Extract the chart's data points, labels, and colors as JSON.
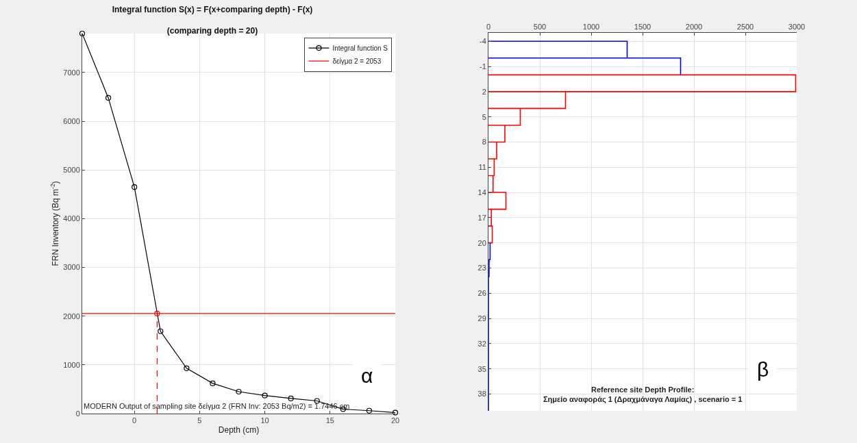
{
  "chart_data": [
    {
      "type": "line",
      "title": "Integral function S(x) = F(x+comparing depth) - F(x)",
      "subtitle": "(comparing depth = 20)",
      "xlabel": "Depth (cm)",
      "ylabel": "FRN Inventory (Bq m$^{-2}$)",
      "xlim": [
        -4,
        20
      ],
      "xticks": [
        0,
        5,
        10,
        15,
        20
      ],
      "ylim": [
        0,
        7800
      ],
      "yticks": [
        0,
        1000,
        2000,
        3000,
        4000,
        5000,
        6000,
        7000
      ],
      "grid": true,
      "legend": "top right",
      "series": [
        {
          "name": "Integral function S",
          "color": "#000000",
          "marker": "circle",
          "x": [
            -4,
            -2,
            0,
            2,
            4,
            6,
            8,
            10,
            12,
            14,
            16,
            18,
            20
          ],
          "values": [
            7800,
            6480,
            4650,
            1690,
            930,
            620,
            450,
            370,
            310,
            260,
            90,
            60,
            20
          ]
        },
        {
          "type": "scatter",
          "color": "#ff0000",
          "marker": "circle",
          "x": [
            1.7446
          ],
          "values": [
            2053
          ]
        },
        {
          "color": "#ff0000",
          "marker": "none",
          "line_style": "dashed",
          "x": [
            1.7446,
            1.7446
          ],
          "values": [
            0,
            2053
          ]
        }
      ],
      "ref_lines": [
        {
          "axis": "y",
          "value": 2053,
          "label": "δείγμα 2 = 2053",
          "color": "#ff0000"
        }
      ],
      "annotations": [
        "MODERN Output of sampling site δείγμα 2 (FRN Inv: 2053 Bq/m2) = 1.7446 cm",
        "α"
      ]
    },
    {
      "type": "line",
      "xlim": [
        0,
        3000
      ],
      "xticks": [
        0,
        500,
        1000,
        1500,
        2000,
        2500,
        3000
      ],
      "ylim": [
        40,
        -5
      ],
      "yticks": [
        -4,
        -1,
        2,
        5,
        8,
        11,
        14,
        17,
        20,
        23,
        26,
        29,
        32,
        35,
        38
      ],
      "grid": true,
      "series": [
        {
          "color": "#0000ff",
          "x": [
            0,
            1350,
            1350,
            0,
            1870,
            1870
          ],
          "values": [
            -4,
            -4,
            -2,
            -2,
            -2,
            0
          ]
        },
        {
          "color": "#ff0000",
          "x": [
            0,
            2990,
            2990,
            0,
            750,
            750,
            0,
            310,
            310,
            0,
            160,
            160,
            0,
            80,
            80,
            0,
            56,
            56,
            0,
            45,
            45,
            0,
            170,
            170,
            0,
            28,
            28,
            0,
            37,
            37,
            0
          ],
          "values": [
            0,
            0,
            2,
            2,
            2,
            4,
            4,
            4,
            6,
            6,
            6,
            8,
            8,
            8,
            10,
            10,
            10,
            12,
            12,
            12,
            14,
            14,
            14,
            16,
            16,
            16,
            18,
            18,
            18,
            20,
            20
          ]
        },
        {
          "color": "#0000ff",
          "x": [
            16,
            16,
            6,
            6,
            0,
            0
          ],
          "values": [
            20,
            22,
            22,
            24,
            24,
            40
          ]
        }
      ],
      "annotations": [
        "Reference site Depth Profile:\nΣημείο αναφοράς 1 (Δραχμάναγα Λαμίας) , scenario = 1",
        "β"
      ]
    }
  ]
}
